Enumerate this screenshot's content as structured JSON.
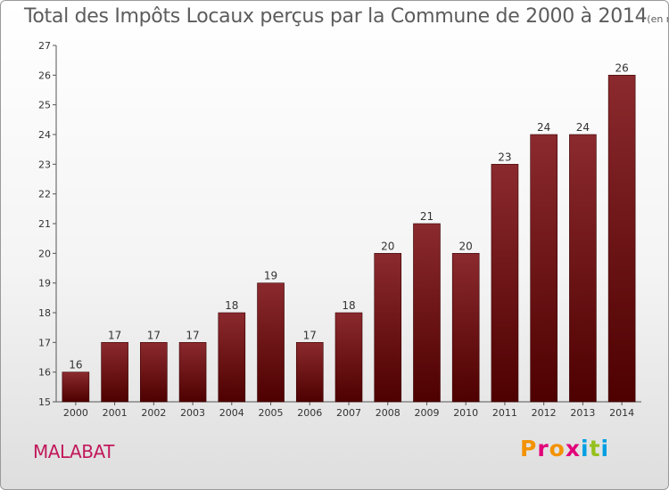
{
  "header": {
    "title": "Total des Impôts Locaux perçus par la Commune de 2000 à 2014",
    "unit": "(en milliers d'€)"
  },
  "commune": "MALABAT",
  "brand": {
    "letters": [
      "P",
      "r",
      "o",
      "x",
      "i",
      "t",
      "i"
    ],
    "colors": [
      "#f39200",
      "#e2007a",
      "#f39200",
      "#e2007a",
      "#009fe3",
      "#95c11f",
      "#009fe3"
    ]
  },
  "chart_data": {
    "type": "bar",
    "title": "Total des Impôts Locaux perçus par la Commune de 2000 à 2014",
    "categories": [
      "2000",
      "2001",
      "2002",
      "2003",
      "2004",
      "2005",
      "2006",
      "2007",
      "2008",
      "2009",
      "2010",
      "2011",
      "2012",
      "2013",
      "2014"
    ],
    "values": [
      16,
      17,
      17,
      17,
      18,
      19,
      17,
      18,
      20,
      21,
      20,
      23,
      24,
      24,
      26
    ],
    "ylim": [
      15,
      27
    ],
    "yticks": [
      15,
      16,
      17,
      18,
      19,
      20,
      21,
      22,
      23,
      24,
      25,
      26,
      27
    ],
    "xlabel": "",
    "ylabel": "",
    "grid": false,
    "legend": "none",
    "bar_color_top": "#8b2a2e",
    "bar_color_bottom": "#4e0000"
  }
}
